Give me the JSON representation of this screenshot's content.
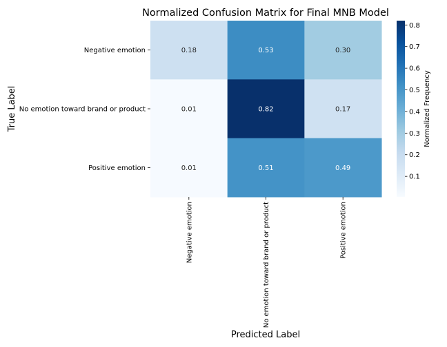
{
  "chart_data": {
    "type": "heatmap",
    "title": "Normalized Confusion Matrix for Final MNB Model",
    "xlabel": "Predicted Label",
    "ylabel": "True Label",
    "x_categories": [
      "Negative emotion",
      "No emotion toward brand or product",
      "Positive emotion"
    ],
    "y_categories": [
      "Negative emotion",
      "No emotion toward brand or product",
      "Positive emotion"
    ],
    "values": [
      [
        0.18,
        0.53,
        0.3
      ],
      [
        0.01,
        0.82,
        0.17
      ],
      [
        0.01,
        0.51,
        0.49
      ]
    ],
    "colorbar": {
      "label": "Normalized Frequency",
      "range": [
        0.005,
        0.82
      ],
      "ticks": [
        0.1,
        0.2,
        0.3,
        0.4,
        0.5,
        0.6,
        0.7,
        0.8
      ],
      "tick_labels": [
        "0.1",
        "0.2",
        "0.3",
        "0.4",
        "0.5",
        "0.6",
        "0.7",
        "0.8"
      ],
      "colormap": "Blues"
    },
    "annotation_colors": {
      "dark": "#262626",
      "light": "#ffffff"
    },
    "grid": false
  }
}
